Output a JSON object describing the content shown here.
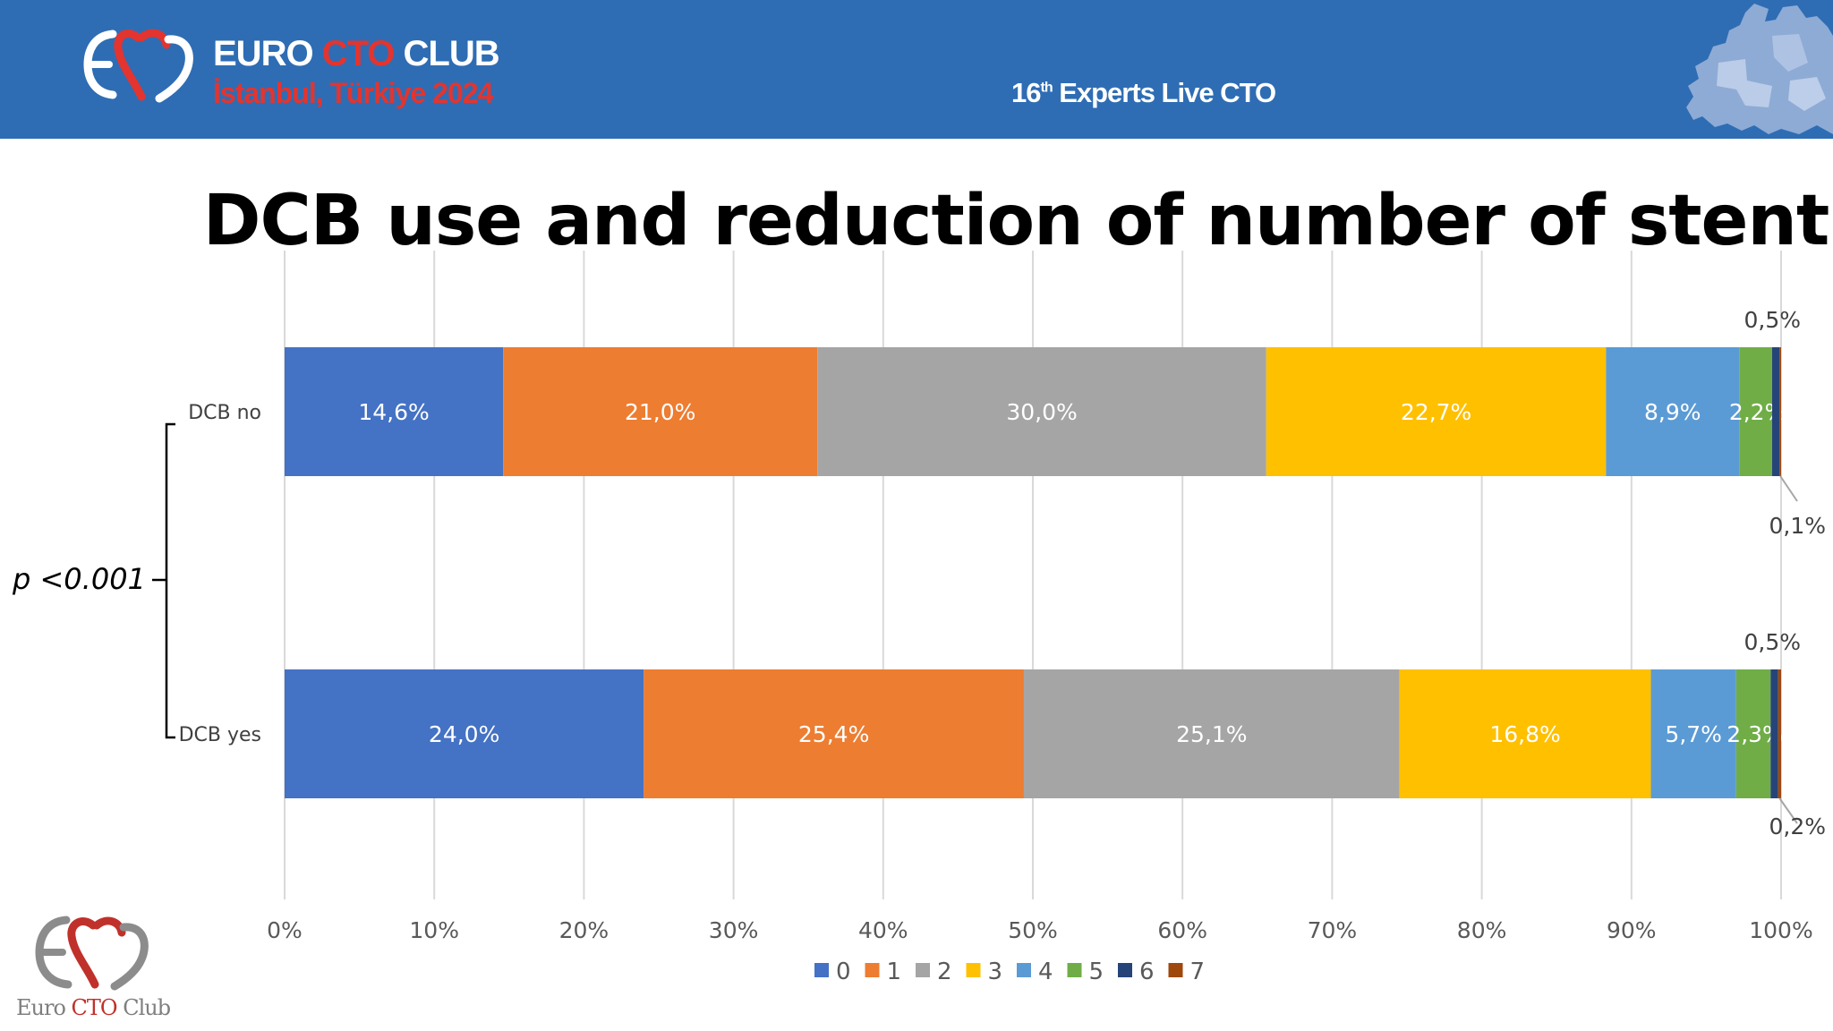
{
  "header": {
    "brand_main": "EURO",
    "brand_accent": "CTO",
    "brand_end": "CLUB",
    "location": "İstanbul, Türkiye 2024",
    "event_prefix": "16",
    "event_sup": "th",
    "event_suffix": " Experts Live CTO"
  },
  "title": "DCB use and reduction of number of stent",
  "significance": "p <0.001",
  "footer_logo": {
    "part1": "Euro ",
    "part2": "CTO",
    "part3": " Club"
  },
  "colors": {
    "header_bg": "#2e6db4",
    "accent_red": "#e3342f",
    "series": [
      "#4472c4",
      "#ed7d31",
      "#a5a5a5",
      "#ffc000",
      "#5b9bd5",
      "#70ad47",
      "#264478",
      "#9e480e"
    ]
  },
  "chart_data": {
    "type": "bar",
    "orientation": "horizontal",
    "stacked": "percent",
    "title": "DCB use and reduction of number of stent",
    "categories": [
      "DCB no",
      "DCB yes"
    ],
    "series": [
      {
        "name": "0",
        "values": [
          14.6,
          24.0
        ],
        "labels": [
          "14,6%",
          "24,0%"
        ]
      },
      {
        "name": "1",
        "values": [
          21.0,
          25.4
        ],
        "labels": [
          "21,0%",
          "25,4%"
        ]
      },
      {
        "name": "2",
        "values": [
          30.0,
          25.1
        ],
        "labels": [
          "30,0%",
          "25,1%"
        ]
      },
      {
        "name": "3",
        "values": [
          22.7,
          16.8
        ],
        "labels": [
          "22,7%",
          "16,8%"
        ]
      },
      {
        "name": "4",
        "values": [
          8.9,
          5.7
        ],
        "labels": [
          "8,9%",
          "5,7%"
        ]
      },
      {
        "name": "5",
        "values": [
          2.2,
          2.3
        ],
        "labels": [
          "2,2%",
          "2,3%"
        ]
      },
      {
        "name": "6",
        "values": [
          0.5,
          0.5
        ],
        "labels": [
          "0,5%",
          "0,5%"
        ]
      },
      {
        "name": "7",
        "values": [
          0.1,
          0.2
        ],
        "labels": [
          "0,1%",
          "0,2%"
        ]
      }
    ],
    "x_ticks": [
      "0%",
      "10%",
      "20%",
      "30%",
      "40%",
      "50%",
      "60%",
      "70%",
      "80%",
      "90%",
      "100%"
    ],
    "xlim": [
      0,
      100
    ],
    "grid": "vertical",
    "legend": "bottom"
  }
}
